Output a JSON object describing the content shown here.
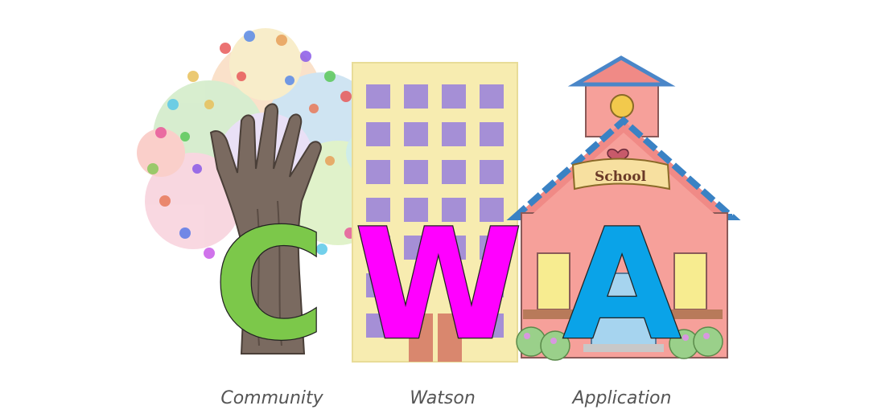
{
  "logo": {
    "letters": [
      "C",
      "W",
      "A"
    ],
    "colors": {
      "c": "#7cc84a",
      "w": "#ff00ff",
      "a": "#0aa3e8",
      "building": "#f7ecb0",
      "window": "#a58fd6",
      "house": "#f6a09a",
      "roof": "#f08a86",
      "trunk": "#7a6a60",
      "door": "#a6d4ef"
    },
    "sign": "School",
    "icons": [
      "handprint-tree-icon",
      "building-icon",
      "schoolhouse-icon"
    ]
  },
  "captions": {
    "community": "Community",
    "watson": "Watson",
    "application": "Application"
  }
}
